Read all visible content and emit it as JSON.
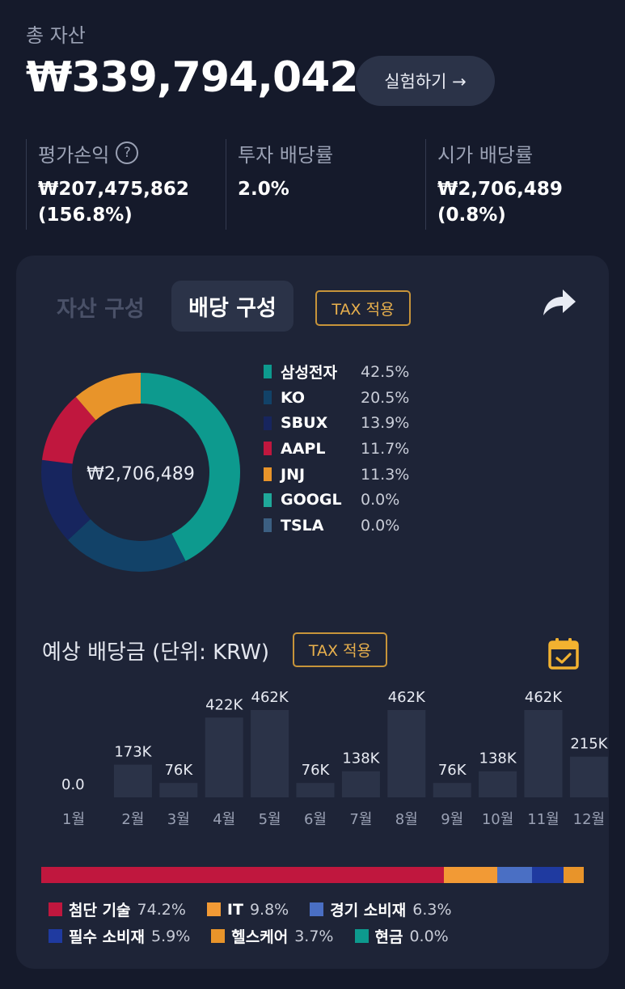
{
  "header": {
    "total_label": "총 자산",
    "total_value": "₩339,794,042",
    "try_button": "실험하기 →"
  },
  "stats": [
    {
      "label": "평가손익",
      "value": "₩207,475,862\n(156.8%)",
      "help_icon": "question-circle-icon"
    },
    {
      "label": "투자 배당률",
      "value": "2.0%"
    },
    {
      "label": "시가 배당률",
      "value": "₩2,706,489\n(0.8%)"
    }
  ],
  "card": {
    "tabs": [
      {
        "label": "자산 구성",
        "active": false
      },
      {
        "label": "배당 구성",
        "active": true
      }
    ],
    "tax_chip": "TAX 적용",
    "share_icon": "share-arrow-icon",
    "donut_center": "₩2,706,489",
    "chart_data": [
      {
        "type": "pie",
        "categories": [
          "삼성전자",
          "KO",
          "SBUX",
          "AAPL",
          "JNJ",
          "GOOGL",
          "TSLA"
        ],
        "values": [
          42.5,
          20.5,
          13.9,
          11.7,
          11.3,
          0.0,
          0.0
        ],
        "labels": [
          "42.5%",
          "20.5%",
          "13.9%",
          "11.7%",
          "11.3%",
          "0.0%",
          "0.0%"
        ],
        "colors": [
          "#0d9a8e",
          "#124268",
          "#17255e",
          "#c0173e",
          "#e8942a",
          "#1fa89a",
          "#3c5f82"
        ],
        "center_label": "₩2,706,489",
        "legend_position": "right"
      },
      {
        "type": "bar",
        "categories": [
          "1월",
          "2월",
          "3월",
          "4월",
          "5월",
          "6월",
          "7월",
          "8월",
          "9월",
          "10월",
          "11월",
          "12월"
        ],
        "values": [
          0,
          173,
          76,
          422,
          462,
          76,
          138,
          462,
          76,
          138,
          462,
          215
        ],
        "labels": [
          "0.0",
          "173K",
          "76K",
          "422K",
          "462K",
          "76K",
          "138K",
          "462K",
          "76K",
          "138K",
          "462K",
          "215K"
        ],
        "bar_color": "#2b3348",
        "ylim": [
          0,
          462
        ]
      },
      {
        "type": "bar",
        "stacked": true,
        "categories": [
          "첨단 기술",
          "IT",
          "경기 소비재",
          "필수 소비재",
          "헬스케어",
          "현금"
        ],
        "values": [
          74.2,
          9.8,
          6.3,
          5.9,
          3.7,
          0.0
        ],
        "labels": [
          "74.2%",
          "9.8%",
          "6.3%",
          "5.9%",
          "3.7%",
          "0.0%"
        ],
        "colors": [
          "#c0173e",
          "#f29a35",
          "#4a6fc4",
          "#1f3aa0",
          "#e8942a",
          "#0d9a8e"
        ]
      }
    ],
    "expected_title": "예상 배당금 (단위: KRW)",
    "calendar_icon": "calendar-check-icon"
  }
}
